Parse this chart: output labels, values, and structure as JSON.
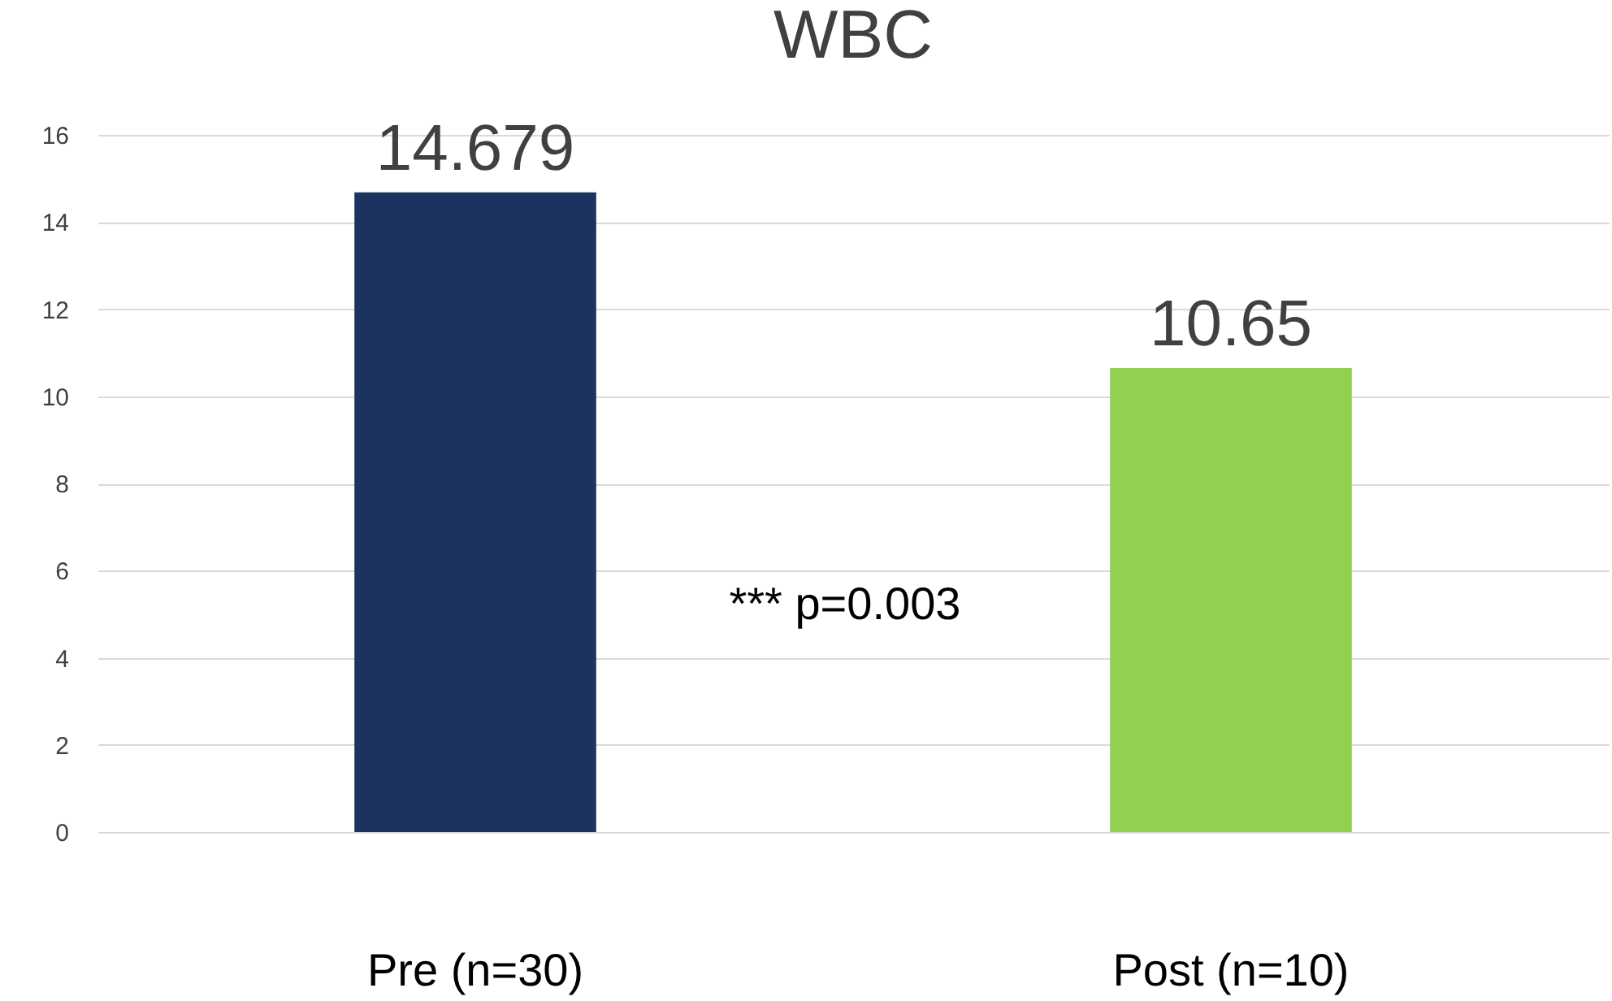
{
  "chart_data": {
    "type": "bar",
    "title": "WBC",
    "categories": [
      "Pre  (n=30)",
      "Post (n=10)"
    ],
    "values": [
      14.679,
      10.65
    ],
    "colors": [
      "#1c3360",
      "#92d050"
    ],
    "ylim": [
      0,
      16
    ],
    "yticks": [
      0,
      2,
      4,
      6,
      8,
      10,
      12,
      14,
      16
    ],
    "grid": true,
    "data_labels": true,
    "annotations": [
      "*** p=0.003"
    ]
  }
}
